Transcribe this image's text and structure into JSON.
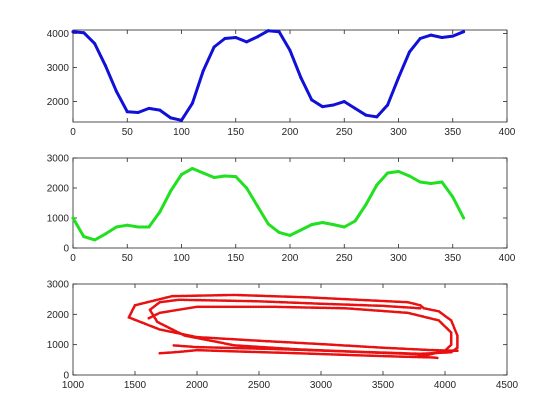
{
  "chart_data": [
    {
      "type": "line",
      "grid": false,
      "xlim": [
        0,
        400
      ],
      "ylim": [
        1400,
        4100
      ],
      "xticks": [
        0,
        50,
        100,
        150,
        200,
        250,
        300,
        350,
        400
      ],
      "yticks": [
        2000,
        3000,
        4000
      ],
      "xtick_labels": [
        "0",
        "50",
        "100",
        "150",
        "200",
        "250",
        "300",
        "350",
        "400"
      ],
      "ytick_labels": [
        "2000",
        "3000",
        "4000"
      ],
      "series": [
        {
          "color": "#1010d8",
          "x": [
            0,
            10,
            20,
            30,
            40,
            50,
            60,
            70,
            80,
            90,
            100,
            110,
            120,
            130,
            140,
            150,
            160,
            170,
            180,
            190,
            200,
            210,
            220,
            230,
            240,
            250,
            260,
            270,
            280,
            290,
            300,
            310,
            320,
            330,
            340,
            350,
            360
          ],
          "y": [
            4050,
            4020,
            3700,
            3050,
            2300,
            1700,
            1680,
            1800,
            1750,
            1520,
            1450,
            1950,
            2900,
            3600,
            3850,
            3880,
            3750,
            3900,
            4080,
            4050,
            3500,
            2700,
            2050,
            1850,
            1900,
            2000,
            1800,
            1600,
            1550,
            1900,
            2700,
            3450,
            3850,
            3950,
            3880,
            3920,
            4050
          ]
        }
      ]
    },
    {
      "type": "line",
      "grid": false,
      "xlim": [
        0,
        400
      ],
      "ylim": [
        0,
        3000
      ],
      "xticks": [
        0,
        50,
        100,
        150,
        200,
        250,
        300,
        350,
        400
      ],
      "yticks": [
        0,
        1000,
        2000,
        3000
      ],
      "xtick_labels": [
        "0",
        "50",
        "100",
        "150",
        "200",
        "250",
        "300",
        "350",
        "400"
      ],
      "ytick_labels": [
        "0",
        "1000",
        "2000",
        "3000"
      ],
      "series": [
        {
          "color": "#20e020",
          "x": [
            0,
            10,
            20,
            30,
            40,
            50,
            60,
            70,
            80,
            90,
            100,
            110,
            120,
            130,
            140,
            150,
            160,
            170,
            180,
            190,
            200,
            210,
            220,
            230,
            240,
            250,
            260,
            270,
            280,
            290,
            300,
            310,
            320,
            330,
            340,
            350,
            360
          ],
          "y": [
            1000,
            380,
            270,
            470,
            700,
            760,
            700,
            700,
            1200,
            1900,
            2450,
            2650,
            2500,
            2350,
            2400,
            2380,
            2000,
            1400,
            800,
            520,
            420,
            600,
            780,
            850,
            780,
            700,
            900,
            1450,
            2100,
            2500,
            2550,
            2400,
            2200,
            2150,
            2200,
            1700,
            1000
          ]
        }
      ]
    },
    {
      "type": "scatter",
      "grid": false,
      "xlim": [
        1000,
        4500
      ],
      "ylim": [
        0,
        3000
      ],
      "xticks": [
        1000,
        1500,
        2000,
        2500,
        3000,
        3500,
        4000,
        4500
      ],
      "yticks": [
        0,
        1000,
        2000,
        3000
      ],
      "xtick_labels": [
        "1000",
        "1500",
        "2000",
        "2500",
        "3000",
        "3500",
        "4000",
        "4500"
      ],
      "ytick_labels": [
        "0",
        "1000",
        "2000",
        "3000"
      ],
      "series": [
        {
          "color": "#e81010",
          "x": [
            4100,
            3900,
            3500,
            3000,
            2500,
            2000,
            1700,
            1450,
            1500,
            1800,
            2300,
            2900,
            3300,
            3700,
            3800,
            3830,
            3950,
            4050,
            4100,
            4100,
            4050,
            3800,
            3200,
            2600,
            2000,
            1800
          ],
          "y": [
            800,
            820,
            900,
            1020,
            1130,
            1250,
            1500,
            1900,
            2300,
            2600,
            2640,
            2560,
            2480,
            2400,
            2300,
            2200,
            2100,
            1800,
            1300,
            900,
            750,
            700,
            780,
            860,
            920,
            980
          ]
        },
        {
          "color": "#e81010",
          "x": [
            3800,
            3500,
            3000,
            2500,
            2000,
            1850,
            1700,
            1620,
            1680,
            1900,
            2300,
            2800,
            3300,
            3700,
            3850,
            3900,
            4000,
            4050,
            4050,
            3950,
            3700,
            3200,
            2600,
            2000,
            1700,
            1600
          ],
          "y": [
            2200,
            2280,
            2350,
            2430,
            2470,
            2480,
            2400,
            2150,
            1750,
            1300,
            980,
            850,
            760,
            700,
            650,
            700,
            800,
            1000,
            1400,
            1800,
            2050,
            2200,
            2250,
            2250,
            2050,
            1850
          ]
        },
        {
          "color": "#e81010",
          "x": [
            1700,
            1850,
            2000,
            2300,
            2800,
            3300,
            3700,
            3900,
            3950
          ],
          "y": [
            720,
            760,
            820,
            780,
            720,
            650,
            600,
            580,
            560
          ]
        }
      ]
    }
  ]
}
